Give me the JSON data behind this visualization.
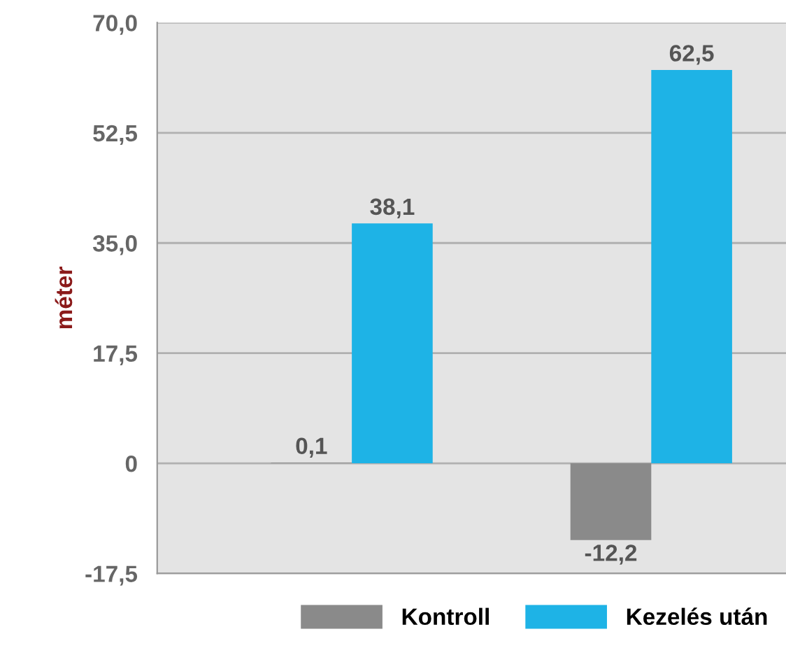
{
  "chart_data": {
    "type": "bar",
    "ylabel": "méter",
    "categories": [
      null,
      null
    ],
    "series": [
      {
        "name": "Kontroll",
        "color": "#8a8a8a",
        "values": [
          0.1,
          -12.2
        ],
        "value_labels": [
          "0,1",
          "-12,2"
        ]
      },
      {
        "name": "Kezelés után",
        "color": "#1eb3e6",
        "values": [
          38.1,
          62.5
        ],
        "value_labels": [
          "38,1",
          "62,5"
        ]
      }
    ],
    "ylim": [
      -17.5,
      70
    ],
    "yticks": [
      {
        "value": -17.5,
        "label": "-17,5"
      },
      0,
      {
        "value": 17.5,
        "label": "17,5"
      },
      {
        "value": 35,
        "label": "35,0"
      },
      {
        "value": 52.5,
        "label": "52,5"
      },
      {
        "value": 70,
        "label": "70,0"
      }
    ],
    "grid": "y",
    "legend": "bottom"
  }
}
